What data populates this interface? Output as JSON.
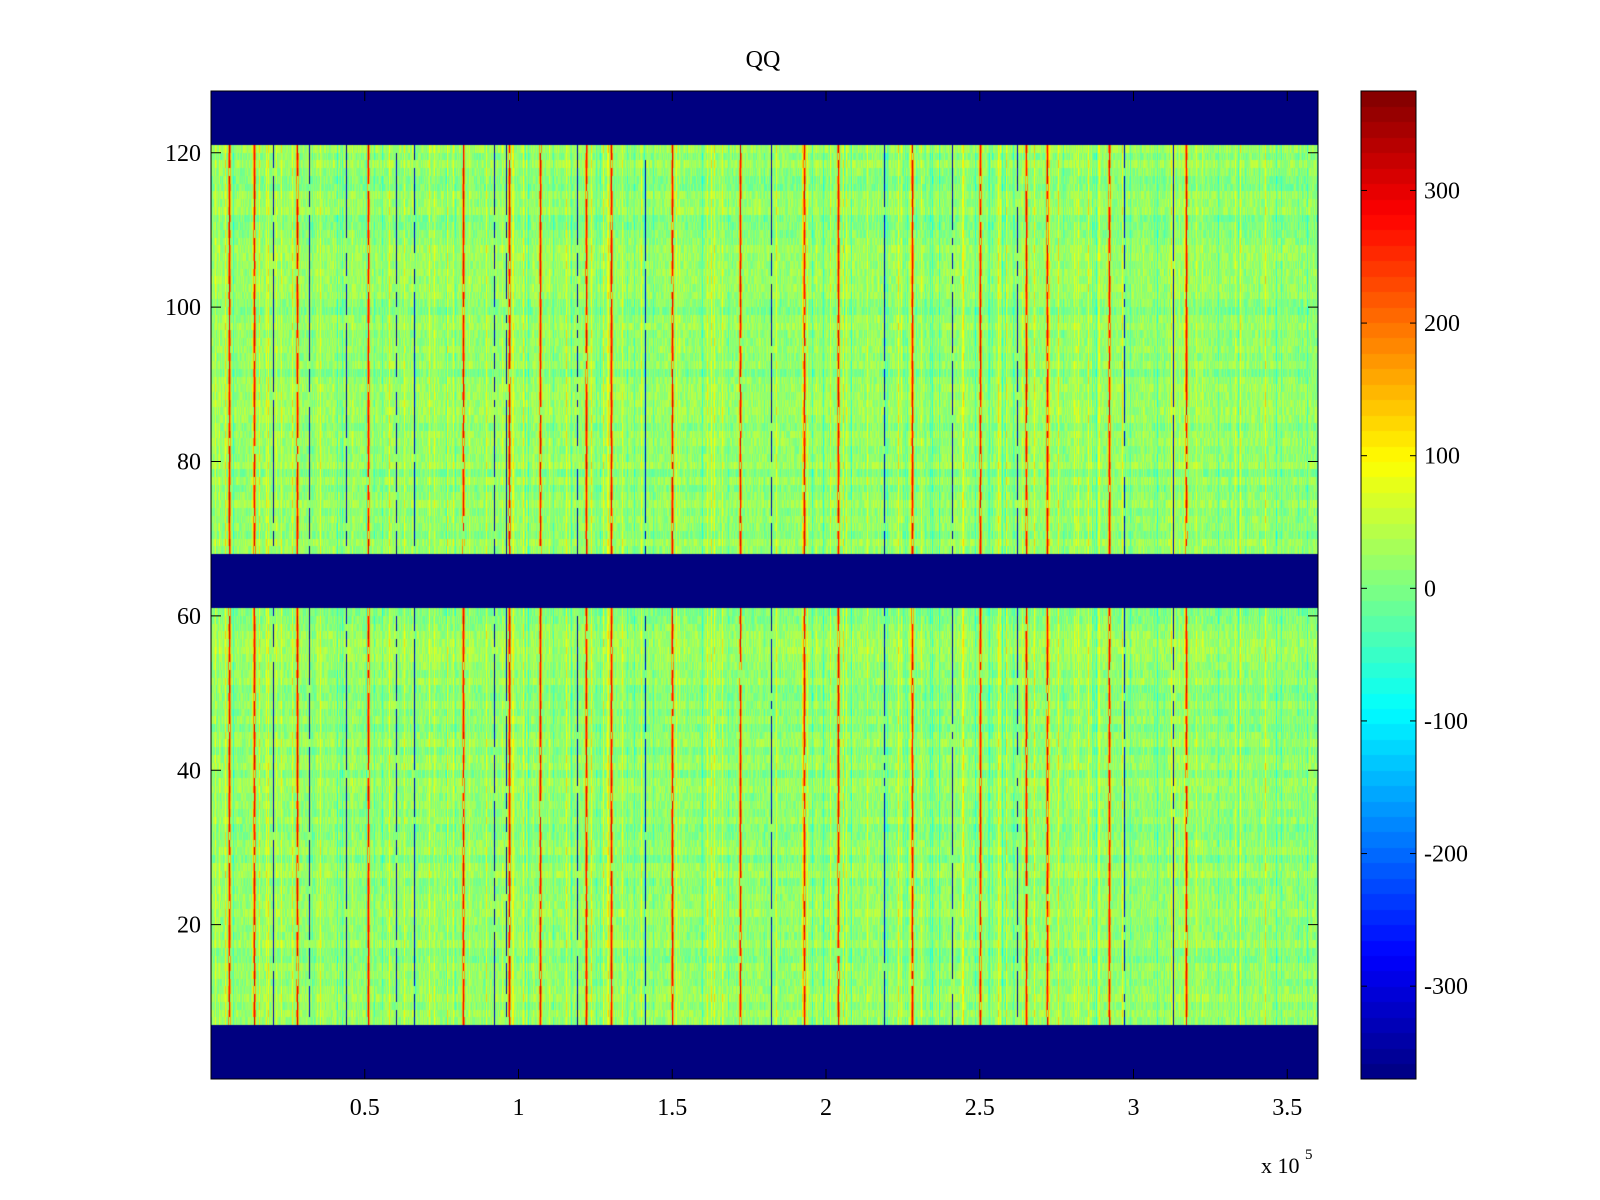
{
  "chart_data": {
    "type": "heatmap",
    "title": "QQ",
    "xlabel": "",
    "ylabel": "",
    "x_exponent_label": "x 10",
    "x_exponent_power": "5",
    "x_range": [
      0,
      360000
    ],
    "y_range": [
      0,
      128
    ],
    "x_ticks": [
      {
        "value": 50000,
        "label": "0.5"
      },
      {
        "value": 100000,
        "label": "1"
      },
      {
        "value": 150000,
        "label": "1.5"
      },
      {
        "value": 200000,
        "label": "2"
      },
      {
        "value": 250000,
        "label": "2.5"
      },
      {
        "value": 300000,
        "label": "3"
      },
      {
        "value": 350000,
        "label": "3.5"
      }
    ],
    "y_ticks": [
      {
        "value": 20,
        "label": "20"
      },
      {
        "value": 40,
        "label": "40"
      },
      {
        "value": 60,
        "label": "60"
      },
      {
        "value": 80,
        "label": "80"
      },
      {
        "value": 100,
        "label": "100"
      },
      {
        "value": 120,
        "label": "120"
      }
    ],
    "color_range": [
      -370,
      375
    ],
    "colormap": "jet",
    "colorbar_ticks": [
      {
        "value": 300,
        "label": "300"
      },
      {
        "value": 200,
        "label": "200"
      },
      {
        "value": 100,
        "label": "100"
      },
      {
        "value": 0,
        "label": "0"
      },
      {
        "value": -100,
        "label": "-100"
      },
      {
        "value": -200,
        "label": "-200"
      },
      {
        "value": -300,
        "label": "-300"
      }
    ],
    "background_value": 15,
    "empty_row_bands": [
      {
        "y_from": 0,
        "y_to": 7,
        "value": -370
      },
      {
        "y_from": 61,
        "y_to": 68,
        "value": -370
      },
      {
        "y_from": 121,
        "y_to": 128,
        "value": -370
      }
    ],
    "empty_band_color": "#00008f",
    "red_stripes_x": [
      6000,
      14000,
      28000,
      51000,
      82000,
      97000,
      107000,
      122000,
      130000,
      150000,
      172000,
      193000,
      204000,
      228000,
      250000,
      265000,
      272000,
      292000,
      317000
    ],
    "dark_blue_stripes_x": [
      20000,
      32000,
      44000,
      60000,
      66000,
      92000,
      96000,
      119000,
      141000,
      182000,
      219000,
      241000,
      262000,
      297000,
      313000
    ],
    "noise_amplitude": 30,
    "grid": false,
    "legend": "colorbar-right"
  }
}
